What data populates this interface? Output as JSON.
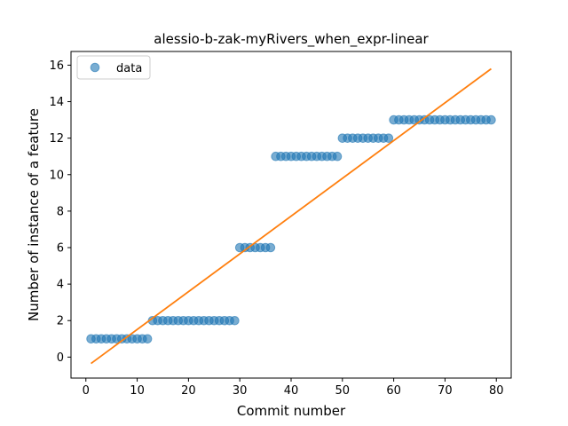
{
  "chart_data": {
    "type": "scatter",
    "title": "alessio-b-zak-myRivers_when_expr-linear",
    "xlabel": "Commit number",
    "ylabel": "Number of instance of a feature",
    "xlim": [
      -2.9,
      82.9
    ],
    "ylim": [
      -1.15,
      16.75
    ],
    "xticks": [
      0,
      10,
      20,
      30,
      40,
      50,
      60,
      70,
      80
    ],
    "yticks": [
      0,
      2,
      4,
      6,
      8,
      10,
      12,
      14,
      16
    ],
    "grid": false,
    "legend": {
      "position": "top-left",
      "entries": [
        "data"
      ]
    },
    "series": [
      {
        "name": "data",
        "kind": "points",
        "color": "#1f77b4",
        "x": [
          1,
          2,
          3,
          4,
          5,
          6,
          7,
          8,
          9,
          10,
          11,
          12,
          13,
          14,
          15,
          16,
          17,
          18,
          19,
          20,
          21,
          22,
          23,
          24,
          25,
          26,
          27,
          28,
          29,
          30,
          31,
          32,
          33,
          34,
          35,
          36,
          37,
          38,
          39,
          40,
          41,
          42,
          43,
          44,
          45,
          46,
          47,
          48,
          49,
          50,
          51,
          52,
          53,
          54,
          55,
          56,
          57,
          58,
          59,
          60,
          61,
          62,
          63,
          64,
          65,
          66,
          67,
          68,
          69,
          70,
          71,
          72,
          73,
          74,
          75,
          76,
          77,
          78,
          79
        ],
        "y": [
          1,
          1,
          1,
          1,
          1,
          1,
          1,
          1,
          1,
          1,
          1,
          1,
          2,
          2,
          2,
          2,
          2,
          2,
          2,
          2,
          2,
          2,
          2,
          2,
          2,
          2,
          2,
          2,
          2,
          6,
          6,
          6,
          6,
          6,
          6,
          6,
          11,
          11,
          11,
          11,
          11,
          11,
          11,
          11,
          11,
          11,
          11,
          11,
          11,
          12,
          12,
          12,
          12,
          12,
          12,
          12,
          12,
          12,
          12,
          13,
          13,
          13,
          13,
          13,
          13,
          13,
          13,
          13,
          13,
          13,
          13,
          13,
          13,
          13,
          13,
          13,
          13,
          13,
          13
        ]
      },
      {
        "kind": "line",
        "color": "#ff7f0e",
        "x": [
          1,
          79
        ],
        "y": [
          -0.35,
          15.8
        ]
      }
    ]
  }
}
